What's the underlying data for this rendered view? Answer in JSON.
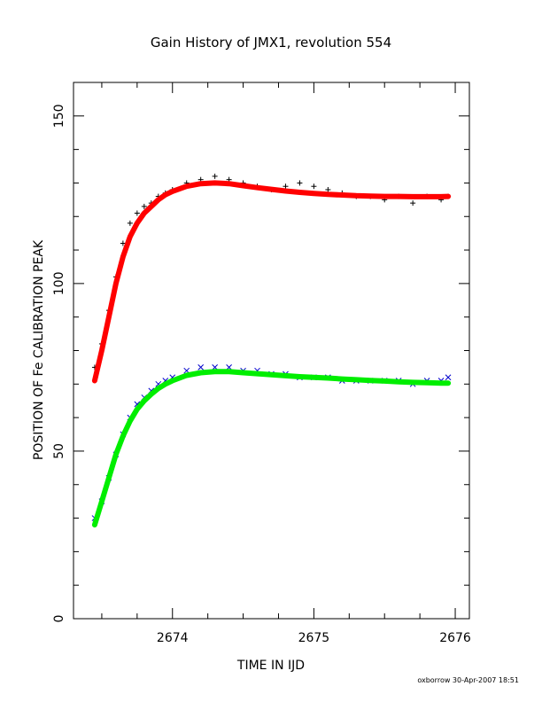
{
  "chart_data": {
    "type": "scatter",
    "title": "Gain History of JMX1, revolution 554",
    "xlabel": "TIME IN IJD",
    "ylabel": "POSITION OF Fe CALIBRATION PEAK",
    "xlim": [
      2673.3,
      2676.1
    ],
    "ylim": [
      0,
      160
    ],
    "x_ticks": [
      2674,
      2675,
      2676
    ],
    "x_tick_labels": [
      "2674",
      "2675",
      "2676"
    ],
    "y_ticks": [
      0,
      50,
      100,
      150
    ],
    "y_tick_labels": [
      "0",
      "50",
      "100",
      "150"
    ],
    "grid": false,
    "legend": "none",
    "footer": "oxborrow 30-Apr-2007 18:51",
    "series": [
      {
        "marker": "+",
        "color": "#000000",
        "x": [
          2673.45,
          2673.5,
          2673.55,
          2673.6,
          2673.65,
          2673.7,
          2673.75,
          2673.8,
          2673.85,
          2673.9,
          2673.95,
          2674.0,
          2674.1,
          2674.2,
          2674.3,
          2674.4,
          2674.5,
          2674.6,
          2674.7,
          2674.8,
          2674.9,
          2675.0,
          2675.1,
          2675.2,
          2675.3,
          2675.4,
          2675.5,
          2675.6,
          2675.7,
          2675.8,
          2675.9,
          2675.95
        ],
        "y": [
          75,
          82,
          92,
          102,
          112,
          118,
          121,
          123,
          124,
          126,
          127,
          128,
          130,
          131,
          132,
          131,
          130,
          129,
          128,
          129,
          130,
          129,
          128,
          127,
          126,
          126,
          125,
          126,
          124,
          126,
          125,
          126
        ]
      },
      {
        "marker": "x",
        "color": "#0000cc",
        "x": [
          2673.45,
          2673.5,
          2673.55,
          2673.6,
          2673.65,
          2673.7,
          2673.75,
          2673.8,
          2673.85,
          2673.9,
          2673.95,
          2674.0,
          2674.1,
          2674.2,
          2674.3,
          2674.4,
          2674.5,
          2674.6,
          2674.7,
          2674.8,
          2674.9,
          2675.0,
          2675.1,
          2675.2,
          2675.3,
          2675.4,
          2675.5,
          2675.6,
          2675.7,
          2675.8,
          2675.9,
          2675.95
        ],
        "y": [
          30,
          35,
          42,
          49,
          55,
          60,
          64,
          66,
          68,
          70,
          71,
          72,
          74,
          75,
          75,
          75,
          74,
          74,
          73,
          73,
          72,
          72,
          72,
          71,
          71,
          71,
          71,
          71,
          70,
          71,
          71,
          72
        ]
      },
      {
        "line": true,
        "color": "#ff0000",
        "x": [
          2673.45,
          2673.5,
          2673.55,
          2673.6,
          2673.65,
          2673.7,
          2673.75,
          2673.8,
          2673.85,
          2673.9,
          2673.95,
          2674.0,
          2674.1,
          2674.2,
          2674.3,
          2674.4,
          2674.5,
          2674.6,
          2674.7,
          2674.8,
          2674.9,
          2675.0,
          2675.1,
          2675.2,
          2675.3,
          2675.4,
          2675.5,
          2675.6,
          2675.7,
          2675.8,
          2675.9,
          2675.95
        ],
        "y": [
          71,
          80,
          90,
          100,
          108,
          114,
          118,
          121,
          123,
          125,
          126.5,
          127.5,
          129,
          129.8,
          130,
          129.8,
          129.2,
          128.6,
          128.1,
          127.6,
          127.2,
          126.9,
          126.6,
          126.4,
          126.2,
          126.1,
          126,
          126,
          125.9,
          125.9,
          125.9,
          126
        ]
      },
      {
        "line": true,
        "color": "#00ee00",
        "x": [
          2673.45,
          2673.5,
          2673.55,
          2673.6,
          2673.65,
          2673.7,
          2673.75,
          2673.8,
          2673.85,
          2673.9,
          2673.95,
          2674.0,
          2674.1,
          2674.2,
          2674.3,
          2674.4,
          2674.5,
          2674.6,
          2674.7,
          2674.8,
          2674.9,
          2675.0,
          2675.1,
          2675.2,
          2675.3,
          2675.4,
          2675.5,
          2675.6,
          2675.7,
          2675.8,
          2675.9,
          2675.95
        ],
        "y": [
          28,
          35,
          42,
          49,
          54.5,
          59,
          62.5,
          65,
          67,
          68.7,
          70,
          71,
          72.6,
          73.4,
          73.7,
          73.7,
          73.4,
          73.1,
          72.8,
          72.5,
          72.2,
          72,
          71.8,
          71.5,
          71.3,
          71.1,
          70.9,
          70.7,
          70.5,
          70.4,
          70.3,
          70.3
        ]
      }
    ]
  }
}
